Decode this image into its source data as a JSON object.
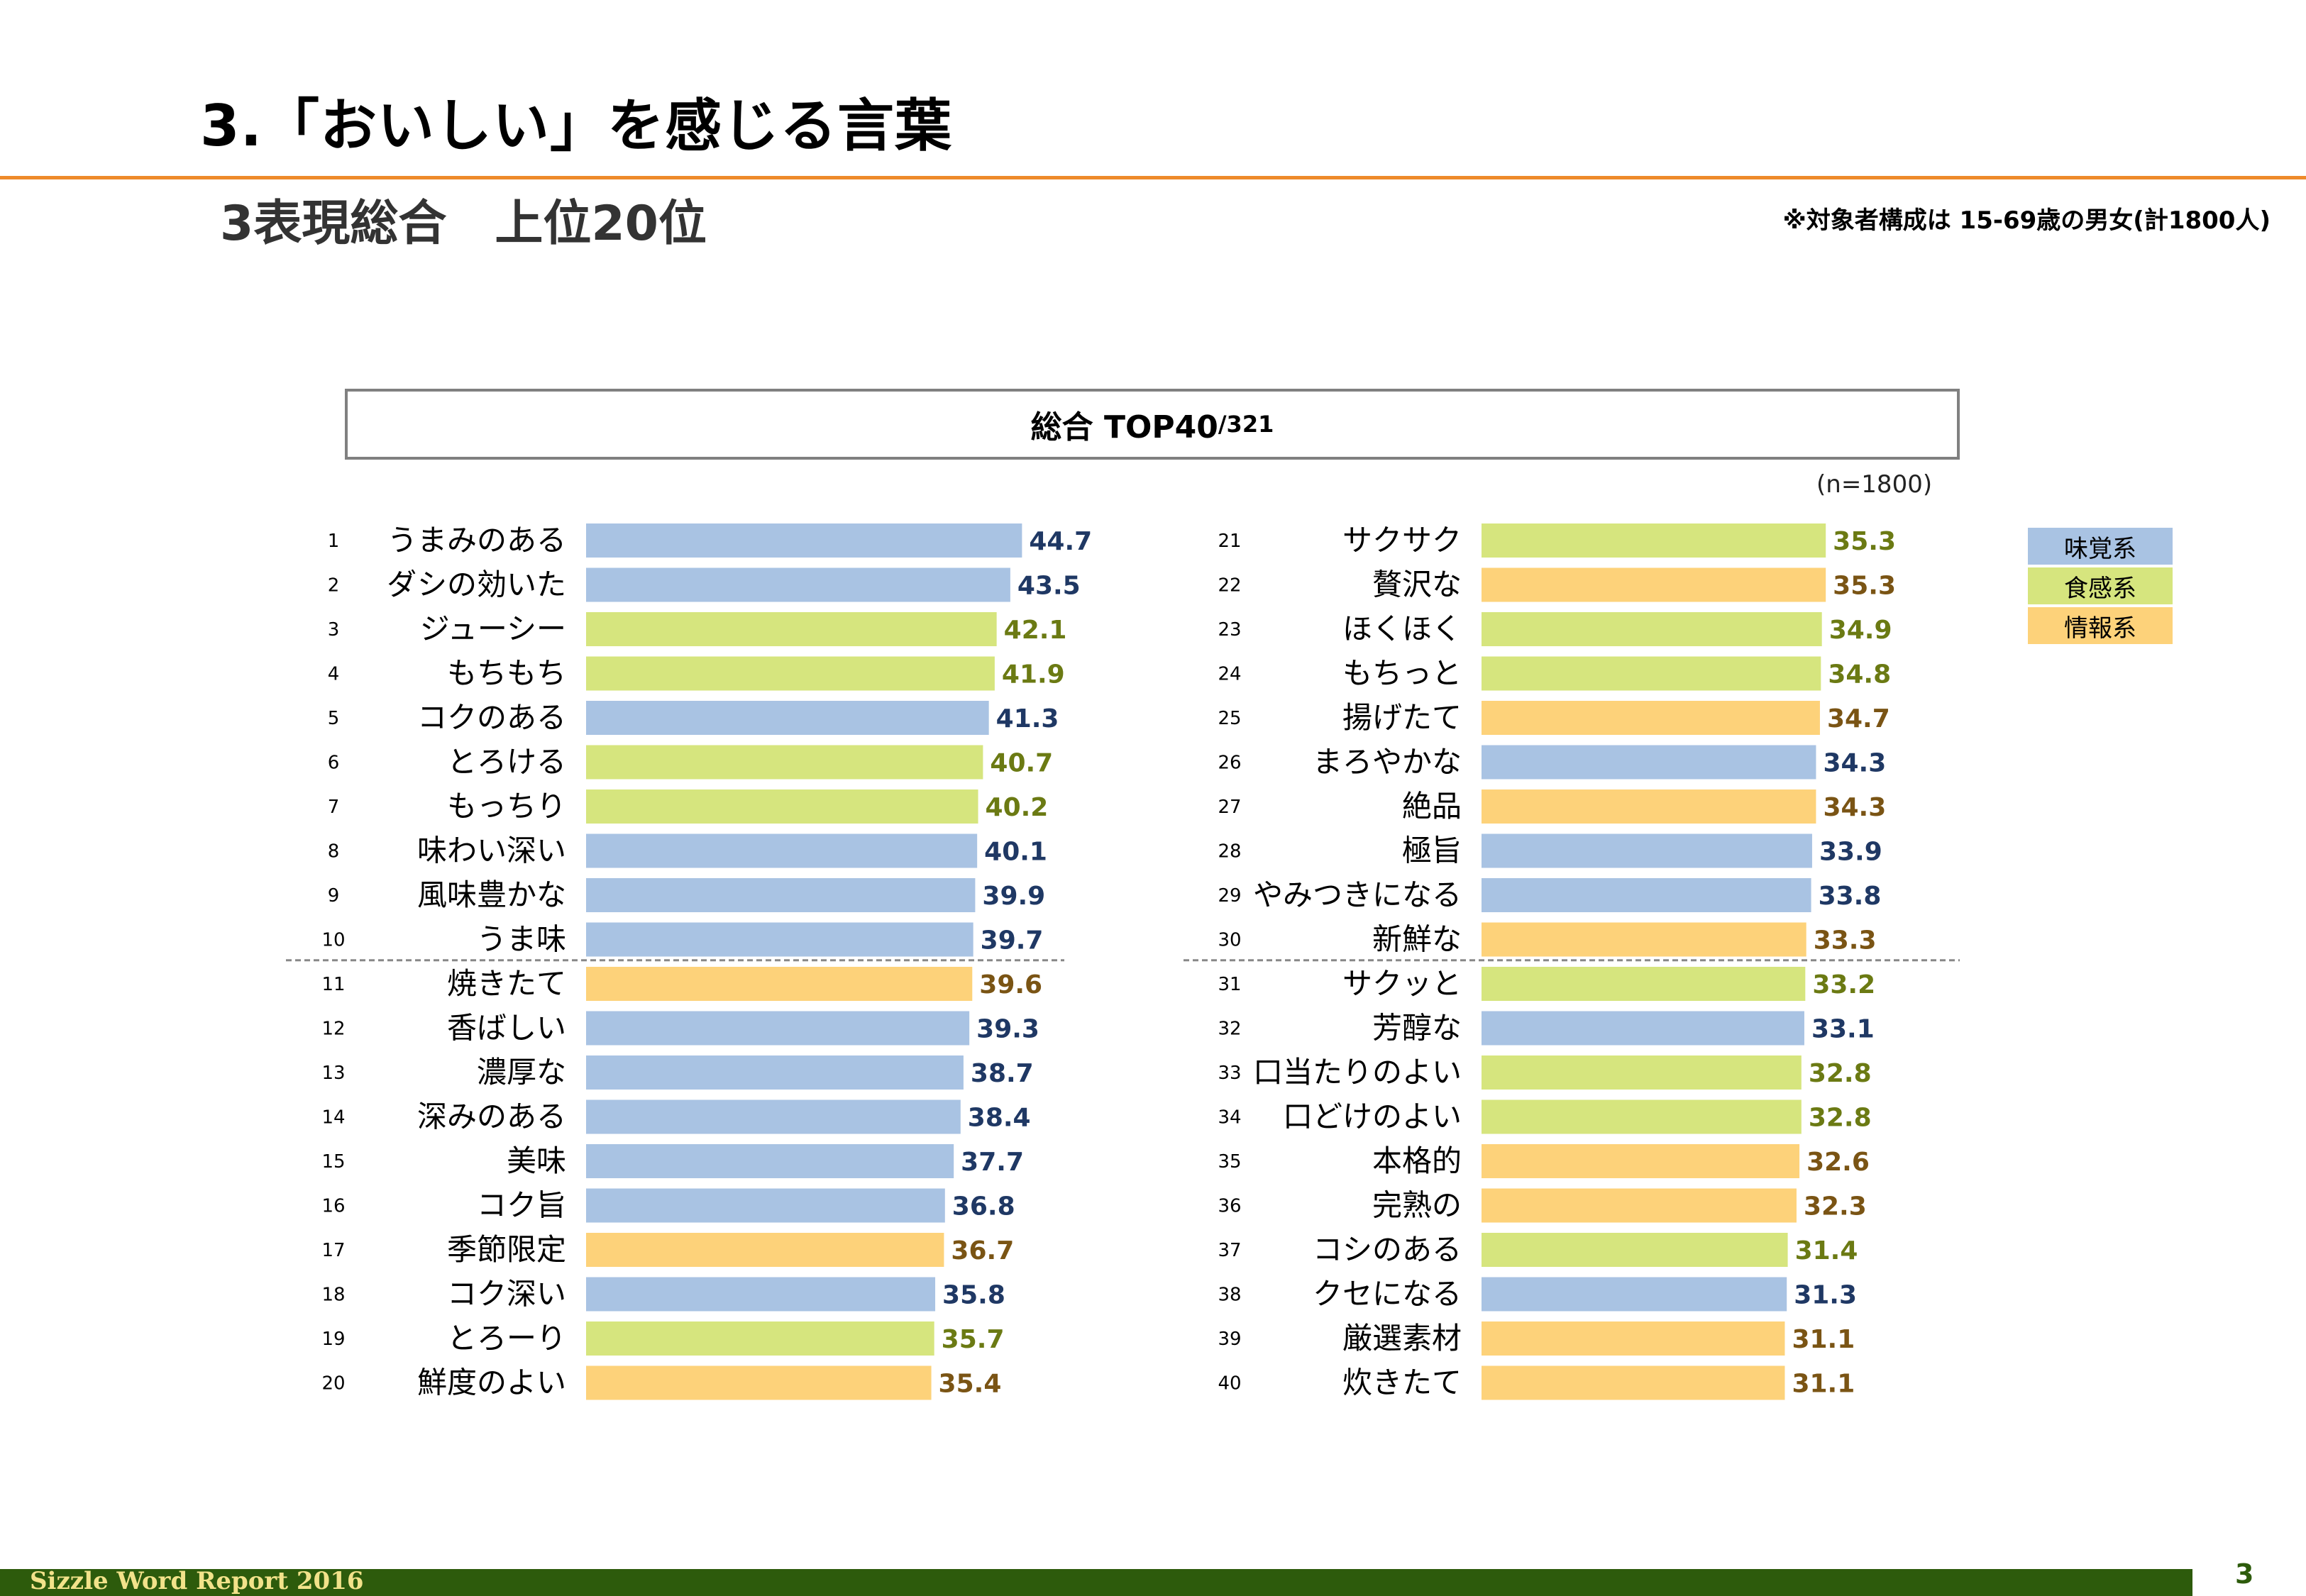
{
  "page": {
    "title": "3.「おいしい」を感じる言葉",
    "subtitle": "3表現総合　上位20位",
    "note": "※対象者構成は 15-69歳の男女(計1800人)",
    "chart_title": "総合 TOP40",
    "chart_title_suffix": "/321",
    "sample_size": "(n=1800)",
    "footer": "Sizzle Word Report 2016",
    "page_number": "3"
  },
  "colors": {
    "accent_rule": "#ee8a2a",
    "footer_bar": "#2d5b0c",
    "味覚系": "#a9c3e3",
    "食感系": "#d6e57e",
    "情報系": "#fdd27a",
    "label_味覚系": "#1f3864",
    "label_食感系": "#6b7a13",
    "label_情報系": "#7a5414"
  },
  "legend": [
    {
      "label": "味覚系",
      "category": "味覚系"
    },
    {
      "label": "食感系",
      "category": "食感系"
    },
    {
      "label": "情報系",
      "category": "情報系"
    }
  ],
  "chart_data": {
    "type": "bar",
    "orientation": "horizontal",
    "title": "総合 TOP40/321",
    "xlim": [
      0,
      47
    ],
    "grid": false,
    "legend_placement": "right",
    "items": [
      {
        "rank": 1,
        "label": "うまみのある",
        "value": 44.7,
        "category": "味覚系"
      },
      {
        "rank": 2,
        "label": "ダシの効いた",
        "value": 43.5,
        "category": "味覚系"
      },
      {
        "rank": 3,
        "label": "ジューシー",
        "value": 42.1,
        "category": "食感系"
      },
      {
        "rank": 4,
        "label": "もちもち",
        "value": 41.9,
        "category": "食感系"
      },
      {
        "rank": 5,
        "label": "コクのある",
        "value": 41.3,
        "category": "味覚系"
      },
      {
        "rank": 6,
        "label": "とろける",
        "value": 40.7,
        "category": "食感系"
      },
      {
        "rank": 7,
        "label": "もっちり",
        "value": 40.2,
        "category": "食感系"
      },
      {
        "rank": 8,
        "label": "味わい深い",
        "value": 40.1,
        "category": "味覚系"
      },
      {
        "rank": 9,
        "label": "風味豊かな",
        "value": 39.9,
        "category": "味覚系"
      },
      {
        "rank": 10,
        "label": "うま味",
        "value": 39.7,
        "category": "味覚系"
      },
      {
        "rank": 11,
        "label": "焼きたて",
        "value": 39.6,
        "category": "情報系"
      },
      {
        "rank": 12,
        "label": "香ばしい",
        "value": 39.3,
        "category": "味覚系"
      },
      {
        "rank": 13,
        "label": "濃厚な",
        "value": 38.7,
        "category": "味覚系"
      },
      {
        "rank": 14,
        "label": "深みのある",
        "value": 38.4,
        "category": "味覚系"
      },
      {
        "rank": 15,
        "label": "美味",
        "value": 37.7,
        "category": "味覚系"
      },
      {
        "rank": 16,
        "label": "コク旨",
        "value": 36.8,
        "category": "味覚系"
      },
      {
        "rank": 17,
        "label": "季節限定",
        "value": 36.7,
        "category": "情報系"
      },
      {
        "rank": 18,
        "label": "コク深い",
        "value": 35.8,
        "category": "味覚系"
      },
      {
        "rank": 19,
        "label": "とろーり",
        "value": 35.7,
        "category": "食感系"
      },
      {
        "rank": 20,
        "label": "鮮度のよい",
        "value": 35.4,
        "category": "情報系"
      },
      {
        "rank": 21,
        "label": "サクサク",
        "value": 35.3,
        "category": "食感系"
      },
      {
        "rank": 22,
        "label": "贅沢な",
        "value": 35.3,
        "category": "情報系"
      },
      {
        "rank": 23,
        "label": "ほくほく",
        "value": 34.9,
        "category": "食感系"
      },
      {
        "rank": 24,
        "label": "もちっと",
        "value": 34.8,
        "category": "食感系"
      },
      {
        "rank": 25,
        "label": "揚げたて",
        "value": 34.7,
        "category": "情報系"
      },
      {
        "rank": 26,
        "label": "まろやかな",
        "value": 34.3,
        "category": "味覚系"
      },
      {
        "rank": 27,
        "label": "絶品",
        "value": 34.3,
        "category": "情報系"
      },
      {
        "rank": 28,
        "label": "極旨",
        "value": 33.9,
        "category": "味覚系"
      },
      {
        "rank": 29,
        "label": "やみつきになる",
        "value": 33.8,
        "category": "味覚系"
      },
      {
        "rank": 30,
        "label": "新鮮な",
        "value": 33.3,
        "category": "情報系"
      },
      {
        "rank": 31,
        "label": "サクッと",
        "value": 33.2,
        "category": "食感系"
      },
      {
        "rank": 32,
        "label": "芳醇な",
        "value": 33.1,
        "category": "味覚系"
      },
      {
        "rank": 33,
        "label": "口当たりのよい",
        "value": 32.8,
        "category": "食感系"
      },
      {
        "rank": 34,
        "label": "口どけのよい",
        "value": 32.8,
        "category": "食感系"
      },
      {
        "rank": 35,
        "label": "本格的",
        "value": 32.6,
        "category": "情報系"
      },
      {
        "rank": 36,
        "label": "完熟の",
        "value": 32.3,
        "category": "情報系"
      },
      {
        "rank": 37,
        "label": "コシのある",
        "value": 31.4,
        "category": "食感系"
      },
      {
        "rank": 38,
        "label": "クセになる",
        "value": 31.3,
        "category": "味覚系"
      },
      {
        "rank": 39,
        "label": "厳選素材",
        "value": 31.1,
        "category": "情報系"
      },
      {
        "rank": 40,
        "label": "炊きたて",
        "value": 31.1,
        "category": "情報系"
      }
    ]
  }
}
